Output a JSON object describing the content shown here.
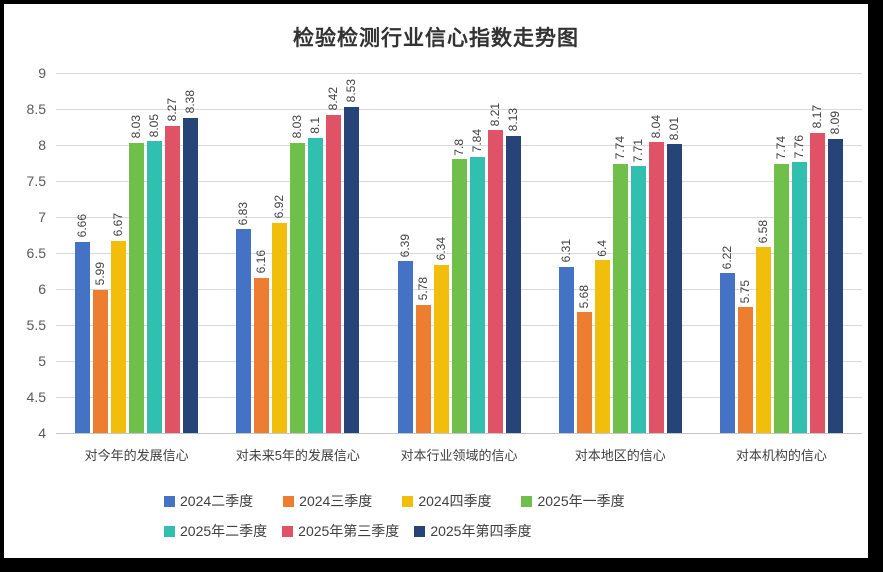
{
  "frame": {
    "border_color": "#000000",
    "background": "#FFFFFF"
  },
  "chart_data": {
    "type": "bar",
    "title": "检验检测行业信心指数走势图",
    "categories": [
      "对今年的发展信心",
      "对未来5年的发展信心",
      "对本行业领域的信心",
      "对本地区的信心",
      "对本机构的信心"
    ],
    "series": [
      {
        "name": "2024二季度",
        "color": "#4472C4",
        "values": [
          6.66,
          6.83,
          6.39,
          6.31,
          6.22
        ]
      },
      {
        "name": "2024三季度",
        "color": "#ED7D31",
        "values": [
          5.99,
          6.16,
          5.78,
          5.68,
          5.75
        ]
      },
      {
        "name": "2024四季度",
        "color": "#F0BE0B",
        "values": [
          6.67,
          6.92,
          6.34,
          6.4,
          6.58
        ]
      },
      {
        "name": "2025年一季度",
        "color": "#70BF4B",
        "values": [
          8.03,
          8.03,
          7.8,
          7.74,
          7.74
        ]
      },
      {
        "name": "2025年二季度",
        "color": "#31BFAF",
        "values": [
          8.05,
          8.1,
          7.84,
          7.71,
          7.76
        ]
      },
      {
        "name": "2025年第三季度",
        "color": "#E05265",
        "values": [
          8.27,
          8.42,
          8.21,
          8.04,
          8.17
        ]
      },
      {
        "name": "2025年第四季度",
        "color": "#264478",
        "values": [
          8.38,
          8.53,
          8.13,
          8.01,
          8.09
        ]
      }
    ],
    "ylim": [
      4,
      9
    ],
    "ytick_step": 0.5,
    "yticks": [
      "9",
      "8.5",
      "8",
      "7.5",
      "7",
      "6.5",
      "6",
      "5.5",
      "5",
      "4.5",
      "4"
    ],
    "grid": true,
    "grid_color": "#D9D9D9",
    "tick_label_color": "#595959",
    "data_label_color": "#404040",
    "legend_position": "bottom",
    "legend_rows": [
      [
        "2024二季度",
        "2024三季度",
        "2024四季度",
        "2025年一季度"
      ],
      [
        "2025年二季度",
        "2025年第三季度",
        "2025年第四季度"
      ]
    ]
  }
}
